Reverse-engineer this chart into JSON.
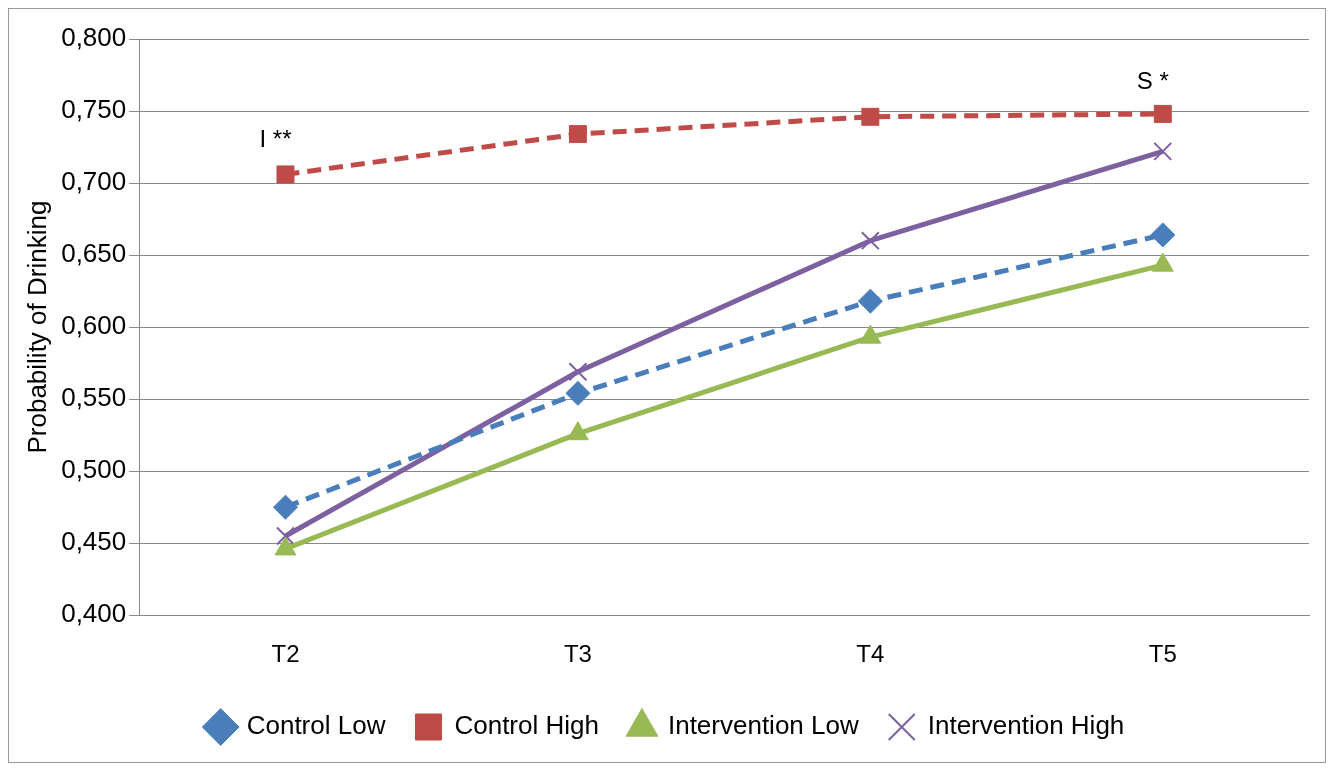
{
  "chart_data": {
    "type": "line",
    "ylabel": "Probability of Drinking",
    "categories": [
      "T2",
      "T3",
      "T4",
      "T5"
    ],
    "series": [
      {
        "name": "Control Low",
        "color": "#4a7ebb",
        "values": [
          0.475,
          0.554,
          0.618,
          0.664
        ],
        "marker": "diamond",
        "line_style": "dashed"
      },
      {
        "name": "Control High",
        "color": "#be4b48",
        "values": [
          0.706,
          0.734,
          0.746,
          0.748
        ],
        "marker": "square",
        "line_style": "dashed"
      },
      {
        "name": "Intervention Low",
        "color": "#98b954",
        "values": [
          0.446,
          0.526,
          0.593,
          0.643
        ],
        "marker": "triangle",
        "line_style": "solid"
      },
      {
        "name": "Intervention High",
        "color": "#7d60a0",
        "values": [
          0.455,
          0.569,
          0.66,
          0.722
        ],
        "marker": "cross",
        "line_style": "solid"
      }
    ],
    "ylim": [
      0.4,
      0.8
    ],
    "yticks": [
      {
        "value": 0.4,
        "label": "0,400"
      },
      {
        "value": 0.45,
        "label": "0,450"
      },
      {
        "value": 0.5,
        "label": "0,500"
      },
      {
        "value": 0.55,
        "label": "0,550"
      },
      {
        "value": 0.6,
        "label": "0,600"
      },
      {
        "value": 0.65,
        "label": "0,650"
      },
      {
        "value": 0.7,
        "label": "0,700"
      },
      {
        "value": 0.75,
        "label": "0,750"
      },
      {
        "value": 0.8,
        "label": "0,800"
      }
    ],
    "grid": "y",
    "legend": "bottom",
    "annotations": [
      "I **",
      "S *"
    ]
  }
}
